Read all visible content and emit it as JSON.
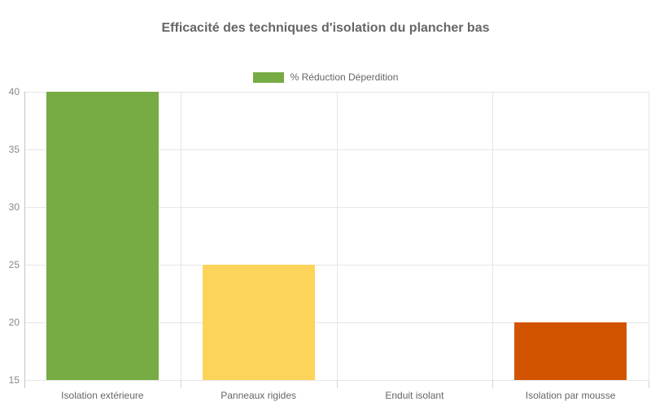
{
  "chart_data": {
    "type": "bar",
    "title": "Efficacité des techniques d'isolation du plancher bas",
    "categories": [
      "Isolation extérieure",
      "Panneaux rigides",
      "Enduit isolant",
      "Isolation par mousse"
    ],
    "series": [
      {
        "name": "% Réduction Déperdition",
        "values": [
          40,
          25,
          15,
          20
        ],
        "colors": [
          "#77ab43",
          "#fdd45a",
          null,
          "#d25400"
        ]
      }
    ],
    "ylim": [
      15,
      40
    ],
    "yticks": [
      15,
      20,
      25,
      30,
      35,
      40
    ],
    "xlabel": "",
    "ylabel": "",
    "grid": true,
    "legend_position": "top-center",
    "legend_swatch_color": "#77ab43"
  },
  "colors": {
    "background": "#ffffff",
    "title_text": "#666666",
    "ytick_text": "#888888",
    "xtick_text": "#666666",
    "legend_text": "#666666",
    "gridline": "#e6e6e6",
    "axis_line": "#c6c6c6"
  }
}
